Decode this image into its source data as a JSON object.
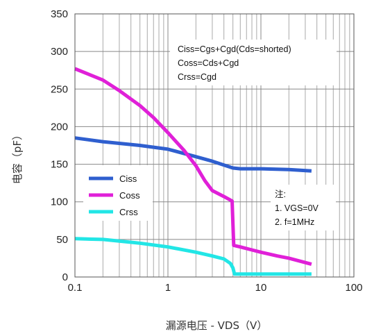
{
  "chart_data": {
    "type": "line",
    "xscale": "log",
    "xlabel": "漏源电压 - VDS（V）",
    "ylabel": "电容（pF）",
    "xlim": [
      0.1,
      100
    ],
    "ylim": [
      0,
      350
    ],
    "x_ticks": [
      0.1,
      1,
      10,
      100
    ],
    "x_tick_labels": [
      "0.1",
      "1",
      "10",
      "100"
    ],
    "y_ticks": [
      0,
      50,
      100,
      150,
      200,
      250,
      300,
      350
    ],
    "y_tick_labels": [
      "0",
      "50",
      "100",
      "150",
      "200",
      "250",
      "300",
      "350"
    ],
    "grid": true,
    "legend_position": "lower-left",
    "series": [
      {
        "name": "Ciss",
        "color": "#2f5fcf",
        "x": [
          0.1,
          0.2,
          0.5,
          1,
          2,
          3,
          4,
          5,
          6,
          10,
          20,
          35
        ],
        "y": [
          185,
          180,
          175,
          170,
          160,
          154,
          149,
          145,
          144,
          144,
          143,
          141
        ]
      },
      {
        "name": "Coss",
        "color": "#e020d8",
        "x": [
          0.1,
          0.2,
          0.3,
          0.5,
          0.7,
          1,
          1.5,
          2,
          2.5,
          3,
          4,
          4.9,
          5,
          5.1,
          6,
          8,
          10,
          15,
          20,
          35
        ],
        "y": [
          277,
          262,
          248,
          228,
          212,
          192,
          168,
          148,
          128,
          115,
          107,
          101,
          70,
          42,
          40,
          36,
          33,
          28,
          25,
          17
        ]
      },
      {
        "name": "Crss",
        "color": "#22e6e6",
        "x": [
          0.1,
          0.2,
          0.5,
          1,
          2,
          3,
          4,
          4.7,
          5,
          5.2,
          6,
          10,
          20,
          35
        ],
        "y": [
          51,
          50,
          45,
          40,
          33,
          28,
          24,
          18,
          12,
          4,
          4,
          4,
          4,
          4
        ]
      }
    ],
    "annotations": {
      "formulas": [
        "Ciss=Cgs+Cgd(Cds=shorted)",
        "Coss=Cds+Cgd",
        "Crss=Cgd"
      ],
      "notes_title": "注:",
      "notes": [
        "1. VGS=0V",
        "2. f=1MHz"
      ]
    }
  }
}
